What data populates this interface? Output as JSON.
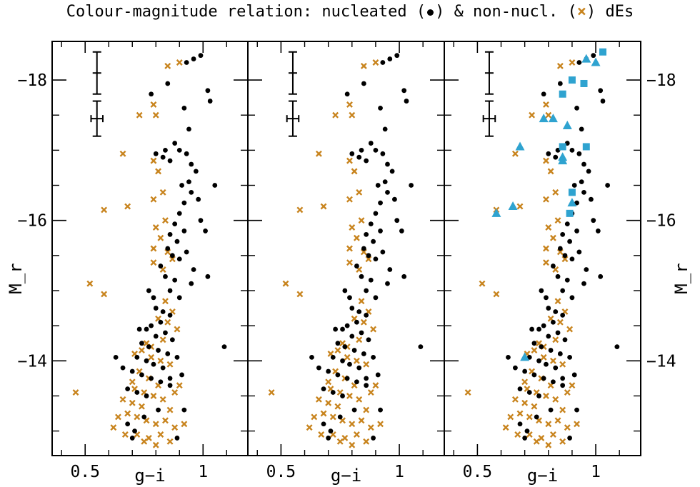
{
  "title": {
    "part1": "Colour-magnitude relation: nucleated (",
    "part2": ") & non-nucl. (",
    "cross_symbol": "×",
    "part3": ") dEs"
  },
  "colors": {
    "nucleated": "#000000",
    "non_nucleated": "#c8841e",
    "cyan": "#2fa3d0",
    "axes": "#000000"
  },
  "chart_data": {
    "type": "scatter",
    "title": "Colour-magnitude relation: nucleated (•) & non-nucl. (×) dEs",
    "xlabel": "g−i",
    "ylabel": "M_r",
    "xlim": [
      0.36,
      1.19
    ],
    "ylim": [
      -12.65,
      -18.55
    ],
    "x_ticklabels": [
      "0.5",
      "1"
    ],
    "y_ticklabels": [
      "−18",
      "−16",
      "−14"
    ],
    "panels": 3,
    "error_bars": [
      {
        "x": 0.55,
        "y": -18.1,
        "xerr": 0.008,
        "yerr": 0.3
      },
      {
        "x": 0.55,
        "y": -17.45,
        "xerr": 0.025,
        "yerr": 0.25
      }
    ],
    "nucleated": [
      [
        0.99,
        -18.35
      ],
      [
        0.96,
        -18.3
      ],
      [
        0.93,
        -18.25
      ],
      [
        0.85,
        -17.95
      ],
      [
        0.78,
        -17.8
      ],
      [
        1.02,
        -17.85
      ],
      [
        1.03,
        -17.7
      ],
      [
        0.92,
        -17.6
      ],
      [
        0.94,
        -17.3
      ],
      [
        0.88,
        -17.1
      ],
      [
        0.84,
        -17.0
      ],
      [
        0.83,
        -16.9
      ],
      [
        0.8,
        -16.95
      ],
      [
        0.86,
        -16.85
      ],
      [
        0.9,
        -17.0
      ],
      [
        0.93,
        -16.95
      ],
      [
        0.95,
        -16.8
      ],
      [
        0.97,
        -16.7
      ],
      [
        0.94,
        -16.55
      ],
      [
        0.91,
        -16.5
      ],
      [
        0.95,
        -16.4
      ],
      [
        0.98,
        -16.3
      ],
      [
        1.05,
        -16.5
      ],
      [
        0.92,
        -16.25
      ],
      [
        0.9,
        -16.1
      ],
      [
        0.88,
        -15.95
      ],
      [
        0.86,
        -15.8
      ],
      [
        0.89,
        -15.7
      ],
      [
        0.92,
        -15.85
      ],
      [
        0.85,
        -15.6
      ],
      [
        0.87,
        -15.5
      ],
      [
        0.9,
        -15.45
      ],
      [
        0.82,
        -15.35
      ],
      [
        0.84,
        -15.2
      ],
      [
        0.88,
        -15.15
      ],
      [
        0.86,
        -15.0
      ],
      [
        1.02,
        -15.2
      ],
      [
        0.95,
        -15.1
      ],
      [
        0.77,
        -15.0
      ],
      [
        0.79,
        -14.9
      ],
      [
        0.8,
        -14.75
      ],
      [
        0.83,
        -14.7
      ],
      [
        0.86,
        -14.65
      ],
      [
        0.82,
        -14.55
      ],
      [
        0.78,
        -14.5
      ],
      [
        0.76,
        -14.45
      ],
      [
        0.8,
        -14.35
      ],
      [
        0.84,
        -14.4
      ],
      [
        0.87,
        -14.3
      ],
      [
        0.74,
        -14.25
      ],
      [
        0.77,
        -14.2
      ],
      [
        0.81,
        -14.15
      ],
      [
        0.85,
        -14.1
      ],
      [
        0.72,
        -14.05
      ],
      [
        0.76,
        -14.0
      ],
      [
        0.79,
        -13.95
      ],
      [
        0.83,
        -13.9
      ],
      [
        0.7,
        -13.85
      ],
      [
        0.74,
        -13.8
      ],
      [
        0.78,
        -13.75
      ],
      [
        0.82,
        -13.7
      ],
      [
        0.86,
        -13.65
      ],
      [
        0.68,
        -13.6
      ],
      [
        0.72,
        -13.55
      ],
      [
        0.76,
        -13.5
      ],
      [
        0.63,
        -14.05
      ],
      [
        0.66,
        -13.9
      ],
      [
        0.89,
        -14.05
      ],
      [
        0.91,
        -13.8
      ],
      [
        1.09,
        -14.2
      ],
      [
        0.68,
        -13.1
      ],
      [
        0.71,
        -13.0
      ],
      [
        0.7,
        -12.9
      ],
      [
        0.89,
        -12.9
      ],
      [
        0.92,
        -13.3
      ],
      [
        0.86,
        -13.75
      ],
      [
        0.81,
        -13.3
      ],
      [
        0.75,
        -13.2
      ],
      [
        0.73,
        -14.45
      ],
      [
        0.9,
        -14.9
      ],
      [
        0.93,
        -15.55
      ],
      [
        0.96,
        -15.3
      ],
      [
        0.99,
        -16.0
      ],
      [
        1.01,
        -15.85
      ]
    ],
    "non_nucleated": [
      [
        0.9,
        -18.25
      ],
      [
        0.85,
        -18.2
      ],
      [
        0.79,
        -17.65
      ],
      [
        0.73,
        -17.5
      ],
      [
        0.8,
        -17.5
      ],
      [
        0.66,
        -16.95
      ],
      [
        0.79,
        -16.85
      ],
      [
        0.58,
        -16.15
      ],
      [
        0.68,
        -16.2
      ],
      [
        0.81,
        -16.7
      ],
      [
        0.83,
        -16.4
      ],
      [
        0.79,
        -16.3
      ],
      [
        0.84,
        -16.0
      ],
      [
        0.8,
        -15.9
      ],
      [
        0.82,
        -15.75
      ],
      [
        0.79,
        -15.6
      ],
      [
        0.85,
        -15.55
      ],
      [
        0.79,
        -15.4
      ],
      [
        0.83,
        -15.3
      ],
      [
        0.87,
        -15.45
      ],
      [
        0.52,
        -15.1
      ],
      [
        0.58,
        -14.95
      ],
      [
        0.84,
        -14.85
      ],
      [
        0.81,
        -14.6
      ],
      [
        0.87,
        -14.7
      ],
      [
        0.85,
        -14.55
      ],
      [
        0.89,
        -14.45
      ],
      [
        0.83,
        -14.3
      ],
      [
        0.78,
        -14.2
      ],
      [
        0.74,
        -14.15
      ],
      [
        0.71,
        -14.1
      ],
      [
        0.78,
        -14.05
      ],
      [
        0.82,
        -14.0
      ],
      [
        0.86,
        -13.95
      ],
      [
        0.73,
        -13.85
      ],
      [
        0.77,
        -13.75
      ],
      [
        0.81,
        -13.65
      ],
      [
        0.71,
        -13.6
      ],
      [
        0.75,
        -13.55
      ],
      [
        0.79,
        -13.5
      ],
      [
        0.66,
        -13.45
      ],
      [
        0.7,
        -13.4
      ],
      [
        0.74,
        -13.35
      ],
      [
        0.83,
        -13.45
      ],
      [
        0.88,
        -13.55
      ],
      [
        0.64,
        -13.2
      ],
      [
        0.68,
        -13.25
      ],
      [
        0.72,
        -13.2
      ],
      [
        0.76,
        -13.15
      ],
      [
        0.8,
        -13.1
      ],
      [
        0.84,
        -13.15
      ],
      [
        0.88,
        -13.05
      ],
      [
        0.62,
        -13.05
      ],
      [
        0.67,
        -12.95
      ],
      [
        0.72,
        -12.95
      ],
      [
        0.77,
        -12.9
      ],
      [
        0.82,
        -12.95
      ],
      [
        0.86,
        -12.85
      ],
      [
        0.75,
        -12.85
      ],
      [
        0.8,
        -12.8
      ],
      [
        0.46,
        -13.55
      ],
      [
        1.19,
        -13.45
      ],
      [
        0.7,
        -13.7
      ],
      [
        0.86,
        -13.3
      ],
      [
        0.9,
        -13.65
      ],
      [
        0.76,
        -14.25
      ],
      [
        0.92,
        -13.1
      ]
    ],
    "panel3_cyan_triangles": [
      [
        0.96,
        -18.3
      ],
      [
        1.0,
        -18.25
      ],
      [
        0.78,
        -17.45
      ],
      [
        0.82,
        -17.45
      ],
      [
        0.88,
        -17.35
      ],
      [
        0.68,
        -17.05
      ],
      [
        0.86,
        -16.85
      ],
      [
        0.86,
        -16.9
      ],
      [
        0.58,
        -16.1
      ],
      [
        0.65,
        -16.2
      ],
      [
        0.9,
        -16.25
      ],
      [
        0.7,
        -14.05
      ]
    ],
    "panel3_cyan_squares": [
      [
        1.03,
        -18.4
      ],
      [
        0.9,
        -18.0
      ],
      [
        0.95,
        -17.95
      ],
      [
        0.86,
        -17.8
      ],
      [
        0.86,
        -17.05
      ],
      [
        0.96,
        -17.05
      ],
      [
        0.9,
        -16.4
      ],
      [
        0.89,
        -16.1
      ]
    ]
  }
}
